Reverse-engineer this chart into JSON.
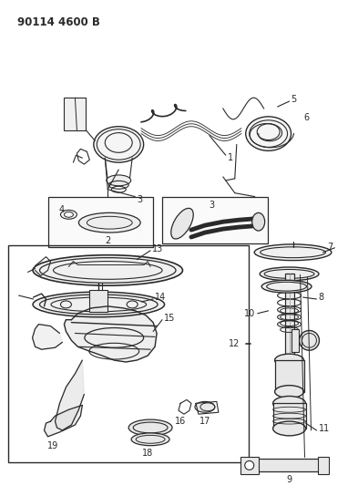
{
  "title": "90114 4600 B",
  "bg_color": "#ffffff",
  "line_color": "#2a2a2a",
  "figsize": [
    3.93,
    5.33
  ],
  "dpi": 100
}
